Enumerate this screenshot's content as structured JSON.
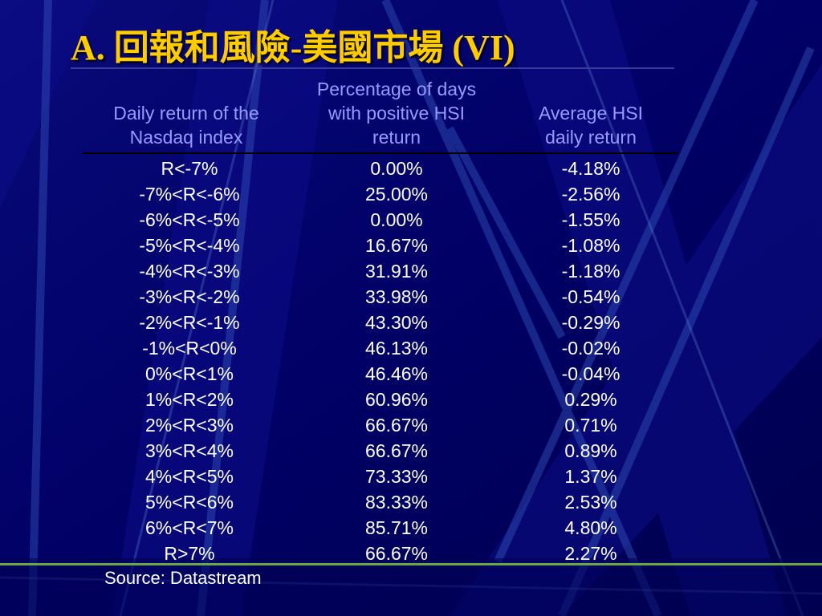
{
  "title": "A. 回報和風險-美國市場 (VI)",
  "headers": {
    "col1": [
      "Daily return of the",
      "Nasdaq index"
    ],
    "col2": [
      "Percentage of days",
      "with positive HSI",
      "return"
    ],
    "col3": [
      "Average HSI",
      "daily return"
    ]
  },
  "rows": [
    {
      "range": "R<-7%",
      "pct": "0.00%",
      "avg": "-4.18%"
    },
    {
      "range": "-7%<R<-6%",
      "pct": "25.00%",
      "avg": "-2.56%"
    },
    {
      "range": "-6%<R<-5%",
      "pct": "0.00%",
      "avg": "-1.55%"
    },
    {
      "range": "-5%<R<-4%",
      "pct": "16.67%",
      "avg": "-1.08%"
    },
    {
      "range": "-4%<R<-3%",
      "pct": "31.91%",
      "avg": "-1.18%"
    },
    {
      "range": "-3%<R<-2%",
      "pct": "33.98%",
      "avg": "-0.54%"
    },
    {
      "range": "-2%<R<-1%",
      "pct": "43.30%",
      "avg": "-0.29%"
    },
    {
      "range": "-1%<R<0%",
      "pct": "46.13%",
      "avg": "-0.02%"
    },
    {
      "range": "0%<R<1%",
      "pct": "46.46%",
      "avg": "-0.04%"
    },
    {
      "range": "1%<R<2%",
      "pct": "60.96%",
      "avg": "0.29%"
    },
    {
      "range": "2%<R<3%",
      "pct": "66.67%",
      "avg": "0.71%"
    },
    {
      "range": "3%<R<4%",
      "pct": "66.67%",
      "avg": "0.89%"
    },
    {
      "range": "4%<R<5%",
      "pct": "73.33%",
      "avg": "1.37%"
    },
    {
      "range": "5%<R<6%",
      "pct": "83.33%",
      "avg": "2.53%"
    },
    {
      "range": "6%<R<7%",
      "pct": "85.71%",
      "avg": "4.80%"
    },
    {
      "range": "R>7%",
      "pct": "66.67%",
      "avg": "2.27%"
    }
  ],
  "source": "Source: Datastream",
  "colors": {
    "background": "#000066",
    "title": "#ffcc00",
    "header_text": "#9999ff",
    "body_text": "#ffffff",
    "accent_line": "#66aa44"
  }
}
